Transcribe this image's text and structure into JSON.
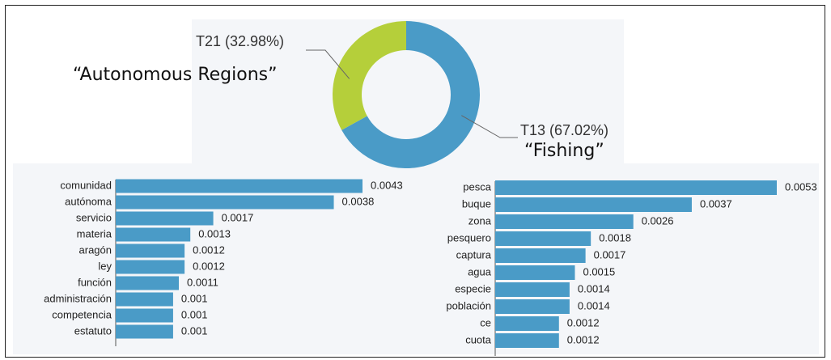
{
  "chart_data": [
    {
      "type": "pie",
      "donut": true,
      "slices": [
        {
          "label": "T13 (67.02%)",
          "value": 67.02,
          "color": "#4a9bc7",
          "annotation": "“Fishing”"
        },
        {
          "label": "T21 (32.98%)",
          "value": 32.98,
          "color": "#b5cf3a",
          "annotation": "“Autonomous Regions”"
        }
      ]
    },
    {
      "type": "bar",
      "orientation": "horizontal",
      "color": "#4a9bc7",
      "categories": [
        "comunidad",
        "autónoma",
        "servicio",
        "materia",
        "aragón",
        "ley",
        "función",
        "administración",
        "competencia",
        "estatuto"
      ],
      "values": [
        0.0043,
        0.0038,
        0.0017,
        0.0013,
        0.0012,
        0.0012,
        0.0011,
        0.001,
        0.001,
        0.001
      ],
      "value_labels": [
        "0.0043",
        "0.0038",
        "0.0017",
        "0.0013",
        "0.0012",
        "0.0012",
        "0.0011",
        "0.001",
        "0.001",
        "0.001"
      ]
    },
    {
      "type": "bar",
      "orientation": "horizontal",
      "color": "#4a9bc7",
      "categories": [
        "pesca",
        "buque",
        "zona",
        "pesquero",
        "captura",
        "agua",
        "especie",
        "población",
        "ce",
        "cuota"
      ],
      "values": [
        0.0053,
        0.0037,
        0.0026,
        0.0018,
        0.0017,
        0.0015,
        0.0014,
        0.0014,
        0.0012,
        0.0012
      ],
      "value_labels": [
        "0.0053",
        "0.0037",
        "0.0026",
        "0.0018",
        "0.0017",
        "0.0015",
        "0.0014",
        "0.0014",
        "0.0012",
        "0.0012"
      ]
    }
  ]
}
